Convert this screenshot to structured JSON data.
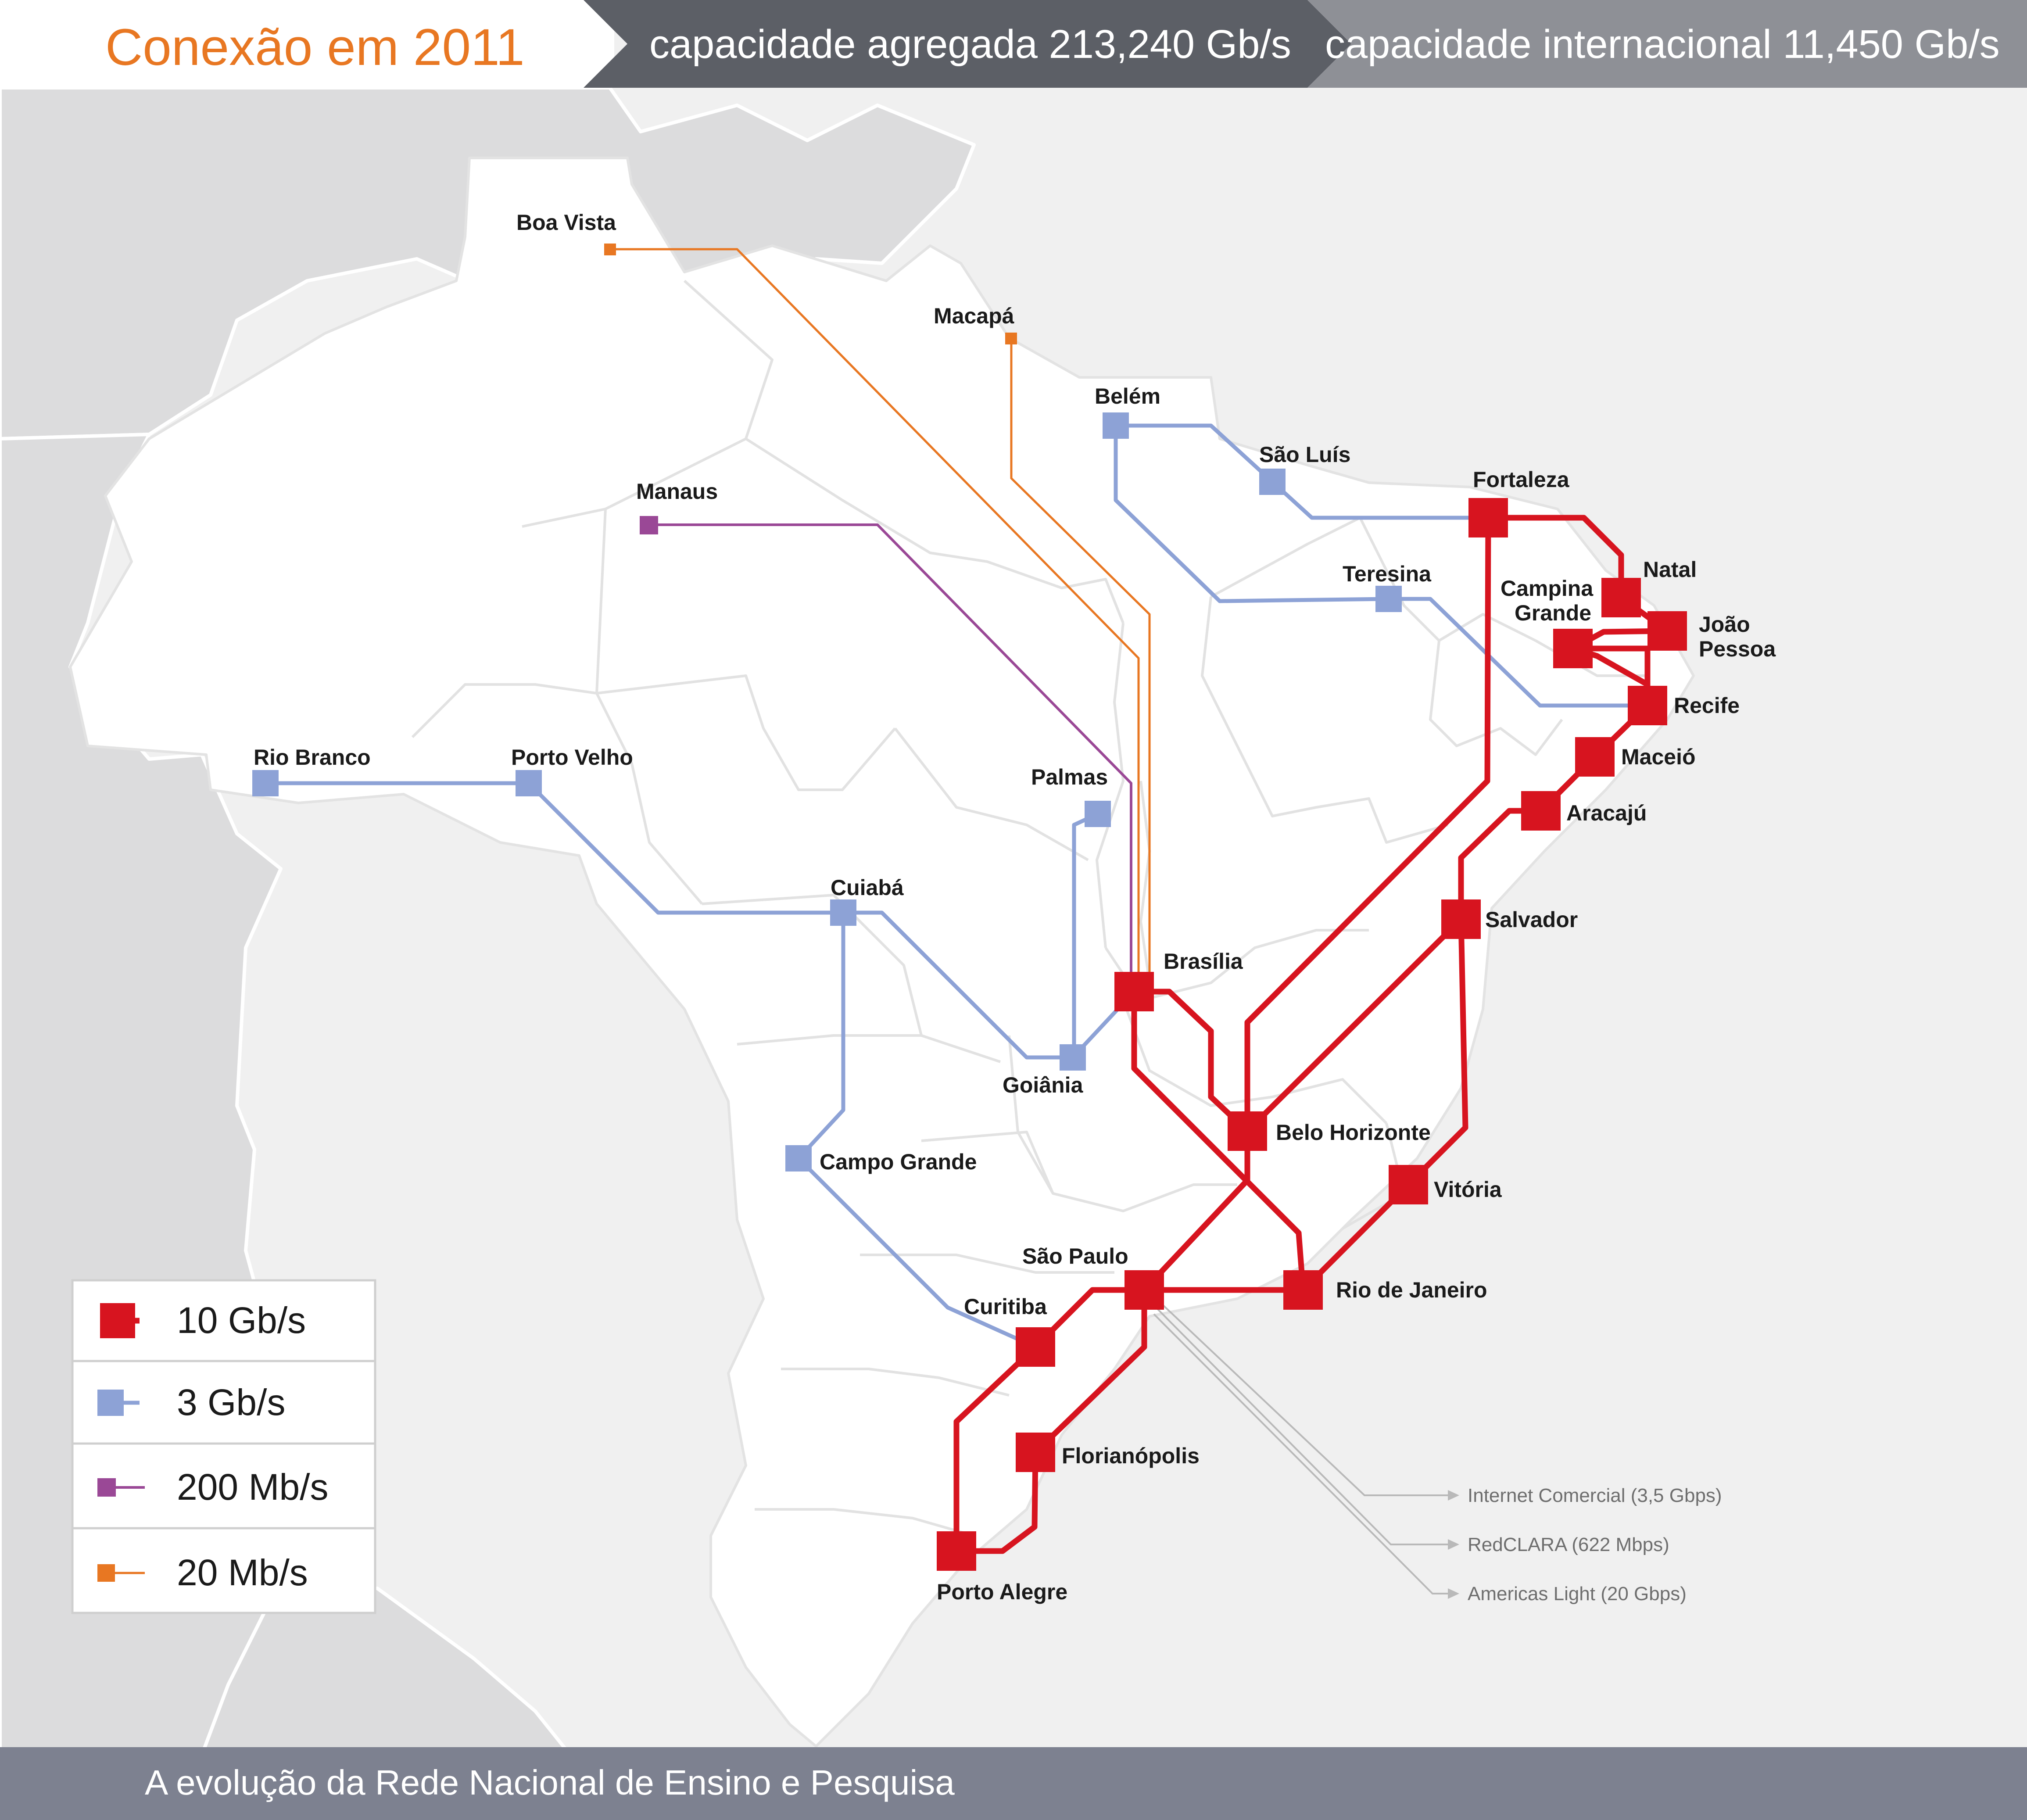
{
  "header": {
    "title": "Conexão em 2011",
    "aggregate_capacity": "capacidade agregada 213,240 Gb/s",
    "international_capacity": "capacidade internacional  11,450 Gb/s"
  },
  "footer": {
    "text": "A evolução da Rede Nacional de Ensino e Pesquisa"
  },
  "colors": {
    "10g": "#d7141f",
    "3g": "#8da2d6",
    "200m": "#9a4896",
    "20m": "#e87722",
    "header_dark": "#5c5f66",
    "header_mid": "#8e9096",
    "footer_bg": "#7d8190",
    "land": "#ffffff",
    "neighbor": "#dcdcdd",
    "sea": "#f0f0f0"
  },
  "legend": [
    {
      "label": "10 Gb/s",
      "speed": "10g"
    },
    {
      "label": "3 Gb/s",
      "speed": "3g"
    },
    {
      "label": "200 Mb/s",
      "speed": "200m"
    },
    {
      "label": "20 Mb/s",
      "speed": "20m"
    }
  ],
  "cities": [
    {
      "id": "boa-vista",
      "name": "Boa Vista",
      "speed": "20m"
    },
    {
      "id": "macapa",
      "name": "Macapá",
      "speed": "20m"
    },
    {
      "id": "belem",
      "name": "Belém",
      "speed": "3g"
    },
    {
      "id": "sao-luis",
      "name": "São Luís",
      "speed": "3g"
    },
    {
      "id": "fortaleza",
      "name": "Fortaleza",
      "speed": "10g"
    },
    {
      "id": "natal",
      "name": "Natal",
      "speed": "10g"
    },
    {
      "id": "campina-grande",
      "name": "Campina\nGrande",
      "speed": "10g"
    },
    {
      "id": "joao-pessoa",
      "name": "João\nPessoa",
      "speed": "10g"
    },
    {
      "id": "teresina",
      "name": "Teresina",
      "speed": "3g"
    },
    {
      "id": "recife",
      "name": "Recife",
      "speed": "10g"
    },
    {
      "id": "maceio",
      "name": "Maceió",
      "speed": "10g"
    },
    {
      "id": "aracaju",
      "name": "Aracajú",
      "speed": "10g"
    },
    {
      "id": "salvador",
      "name": "Salvador",
      "speed": "10g"
    },
    {
      "id": "manaus",
      "name": "Manaus",
      "speed": "200m"
    },
    {
      "id": "rio-branco",
      "name": "Rio Branco",
      "speed": "3g"
    },
    {
      "id": "porto-velho",
      "name": "Porto Velho",
      "speed": "3g"
    },
    {
      "id": "palmas",
      "name": "Palmas",
      "speed": "3g"
    },
    {
      "id": "cuiaba",
      "name": "Cuiabá",
      "speed": "3g"
    },
    {
      "id": "brasilia",
      "name": "Brasília",
      "speed": "10g"
    },
    {
      "id": "goiania",
      "name": "Goiânia",
      "speed": "3g"
    },
    {
      "id": "belo-horizonte",
      "name": "Belo Horizonte",
      "speed": "10g"
    },
    {
      "id": "campo-grande",
      "name": "Campo Grande",
      "speed": "3g"
    },
    {
      "id": "vitoria",
      "name": "Vitória",
      "speed": "10g"
    },
    {
      "id": "sao-paulo",
      "name": "São Paulo",
      "speed": "10g"
    },
    {
      "id": "rio-de-janeiro",
      "name": "Rio de Janeiro",
      "speed": "10g"
    },
    {
      "id": "curitiba",
      "name": "Curitiba",
      "speed": "10g"
    },
    {
      "id": "florianopolis",
      "name": "Florianópolis",
      "speed": "10g"
    },
    {
      "id": "porto-alegre",
      "name": "Porto Alegre",
      "speed": "10g"
    }
  ],
  "international_links": [
    {
      "label": "Internet Comercial (3,5 Gbps)"
    },
    {
      "label": "RedCLARA (622 Mbps)"
    },
    {
      "label": "Americas Light (20 Gbps)"
    }
  ]
}
